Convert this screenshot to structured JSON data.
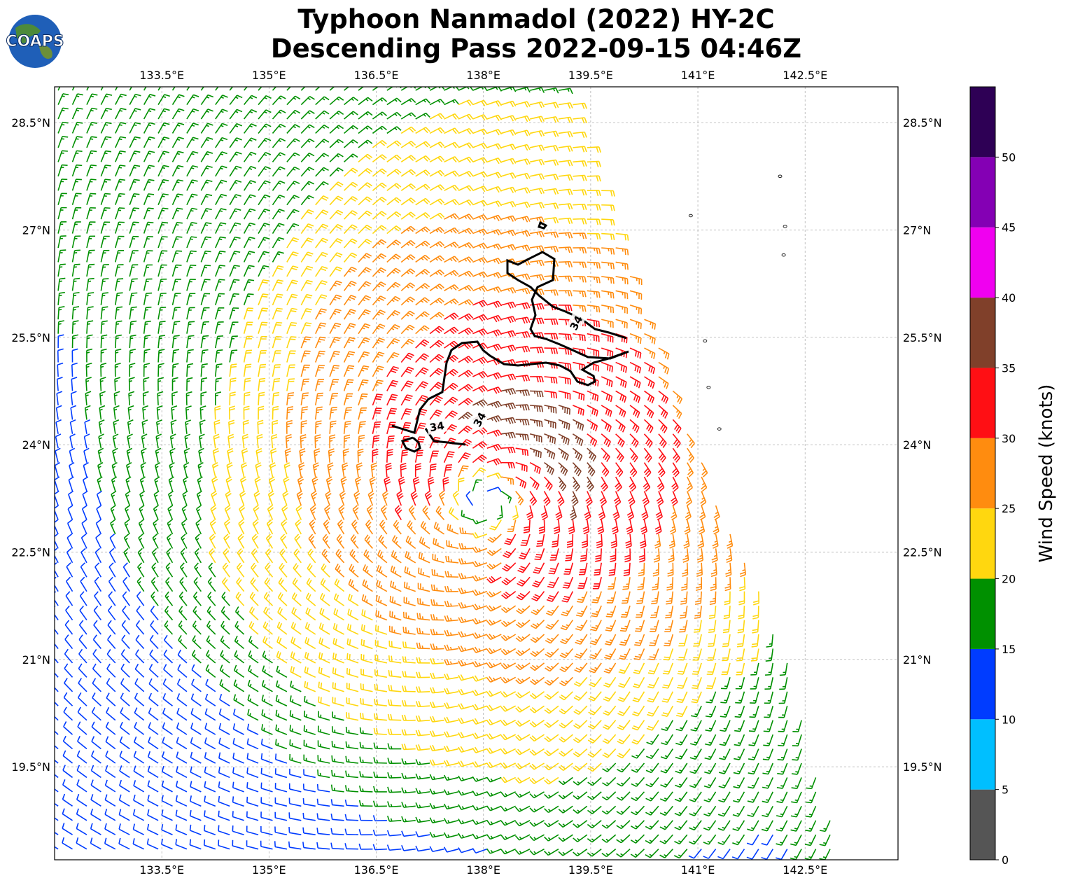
{
  "title": {
    "line1": "Typhoon Nanmadol (2022) HY-2C",
    "line2": "Descending Pass 2022-09-15 04:46Z"
  },
  "logo": {
    "text": "COAPS"
  },
  "map": {
    "lon_range": [
      132.0,
      143.8
    ],
    "lat_range": [
      18.2,
      29.0
    ],
    "gridlines": true,
    "lon_ticks": [
      {
        "value": 133.5,
        "label": "133.5°E"
      },
      {
        "value": 135.0,
        "label": "135°E"
      },
      {
        "value": 136.5,
        "label": "136.5°E"
      },
      {
        "value": 138.0,
        "label": "138°E"
      },
      {
        "value": 139.5,
        "label": "139.5°E"
      },
      {
        "value": 141.0,
        "label": "141°E"
      },
      {
        "value": 142.5,
        "label": "142.5°E"
      }
    ],
    "lat_ticks": [
      {
        "value": 28.5,
        "label": "28.5°N"
      },
      {
        "value": 27.0,
        "label": "27°N"
      },
      {
        "value": 25.5,
        "label": "25.5°N"
      },
      {
        "value": 24.0,
        "label": "24°N"
      },
      {
        "value": 22.5,
        "label": "22.5°N"
      },
      {
        "value": 21.0,
        "label": "21°N"
      },
      {
        "value": 19.5,
        "label": "19.5°N"
      }
    ],
    "storm_center": {
      "lon": 138.05,
      "lat": 23.2
    },
    "swath_east_edge": [
      [
        139.2,
        29.0
      ],
      [
        140.4,
        25.5
      ],
      [
        140.95,
        24.0
      ],
      [
        142.2,
        21.2
      ],
      [
        143.0,
        18.2
      ]
    ],
    "contour_label": "34",
    "contour_label_positions": [
      {
        "lon": 137.35,
        "lat": 24.25,
        "angle": -10
      },
      {
        "lon": 137.95,
        "lat": 24.35,
        "angle": -62
      },
      {
        "lon": 139.3,
        "lat": 25.7,
        "angle": -62
      }
    ],
    "islands": [
      {
        "lon": 141.1,
        "lat": 25.45
      },
      {
        "lon": 141.15,
        "lat": 24.8
      },
      {
        "lon": 141.3,
        "lat": 24.22
      },
      {
        "lon": 142.2,
        "lat": 26.65
      },
      {
        "lon": 142.22,
        "lat": 27.05
      },
      {
        "lon": 142.15,
        "lat": 27.75
      },
      {
        "lon": 140.9,
        "lat": 27.2
      }
    ]
  },
  "colorbar": {
    "label": "Wind Speed (knots)",
    "tick_values": [
      "0",
      "5",
      "10",
      "15",
      "20",
      "25",
      "30",
      "35",
      "40",
      "45",
      "50"
    ],
    "segments": [
      {
        "min": 0,
        "max": 5,
        "color": "#555555"
      },
      {
        "min": 5,
        "max": 10,
        "color": "#00bfff"
      },
      {
        "min": 10,
        "max": 15,
        "color": "#003cff"
      },
      {
        "min": 15,
        "max": 20,
        "color": "#009000"
      },
      {
        "min": 20,
        "max": 25,
        "color": "#ffd70f"
      },
      {
        "min": 25,
        "max": 30,
        "color": "#ff8c0f"
      },
      {
        "min": 30,
        "max": 35,
        "color": "#ff0f14"
      },
      {
        "min": 35,
        "max": 40,
        "color": "#80402a"
      },
      {
        "min": 40,
        "max": 45,
        "color": "#f000f0"
      },
      {
        "min": 45,
        "max": 50,
        "color": "#8400b4"
      },
      {
        "min": 50,
        "max": 55,
        "color": "#2e0055"
      }
    ]
  },
  "chart_data": {
    "type": "wind_barbs",
    "units": "knots",
    "contour_level": 34,
    "vortex_center": {
      "lon": 138.05,
      "lat": 23.2
    },
    "speed_by_radius_deg": [
      {
        "r": 0.3,
        "speed": 20
      },
      {
        "r": 0.6,
        "speed": 31
      },
      {
        "r": 1.2,
        "speed": 33
      },
      {
        "r": 2.0,
        "speed": 30
      },
      {
        "r": 3.0,
        "speed": 26
      },
      {
        "r": 4.5,
        "speed": 21
      },
      {
        "r": 6.0,
        "speed": 18
      }
    ]
  }
}
